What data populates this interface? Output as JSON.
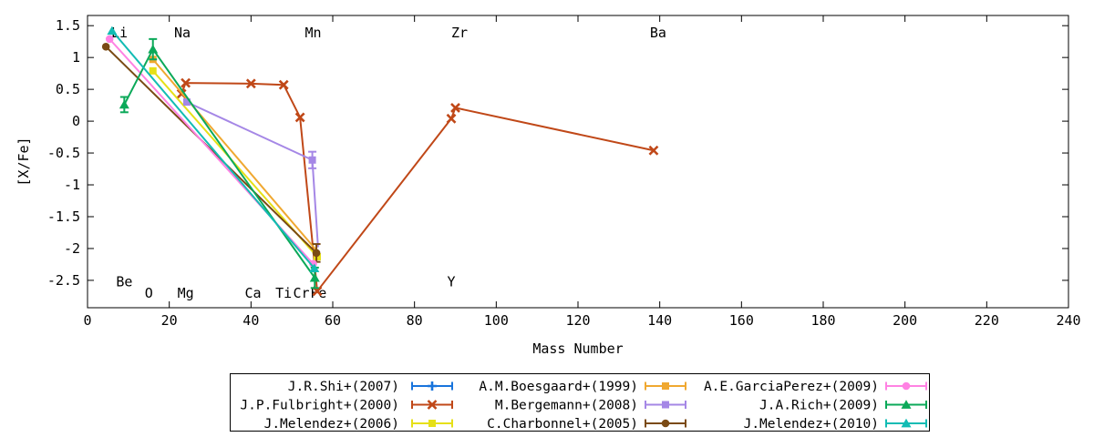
{
  "chart_data": {
    "type": "line",
    "title": "",
    "xlabel": "Mass Number",
    "ylabel": "[X/Fe]",
    "x_range": [
      0,
      240
    ],
    "y_range": [
      -2.93,
      1.66
    ],
    "grid": false,
    "legend_position": "below-center",
    "x_ticks": [
      {
        "v": 0,
        "label": "0"
      },
      {
        "v": 20,
        "label": "20"
      },
      {
        "v": 40,
        "label": "40"
      },
      {
        "v": 60,
        "label": "60"
      },
      {
        "v": 80,
        "label": "80"
      },
      {
        "v": 100,
        "label": "100"
      },
      {
        "v": 120,
        "label": "120"
      },
      {
        "v": 140,
        "label": "140"
      },
      {
        "v": 160,
        "label": "160"
      },
      {
        "v": 180,
        "label": "180"
      },
      {
        "v": 200,
        "label": "200"
      },
      {
        "v": 220,
        "label": "220"
      },
      {
        "v": 240,
        "label": "240"
      }
    ],
    "y_ticks": [
      {
        "v": 1.5,
        "label": "1.5"
      },
      {
        "v": 1,
        "label": "1"
      },
      {
        "v": 0.5,
        "label": "0.5"
      },
      {
        "v": 0,
        "label": "0"
      },
      {
        "v": -0.5,
        "label": "-0.5"
      },
      {
        "v": -1,
        "label": "-1"
      },
      {
        "v": -1.5,
        "label": "-1.5"
      },
      {
        "v": -2,
        "label": "-2"
      },
      {
        "v": -2.5,
        "label": "-2.5"
      }
    ],
    "element_labels": [
      {
        "text": "Li",
        "x": 7.8,
        "y": 1.39
      },
      {
        "text": "Na",
        "x": 23.2,
        "y": 1.39
      },
      {
        "text": "Mn",
        "x": 55.2,
        "y": 1.39
      },
      {
        "text": "Zr",
        "x": 91.0,
        "y": 1.39
      },
      {
        "text": "Ba",
        "x": 139.6,
        "y": 1.39
      },
      {
        "text": "Be",
        "x": 9.0,
        "y": -2.52
      },
      {
        "text": "O",
        "x": 15.0,
        "y": -2.7
      },
      {
        "text": "Mg",
        "x": 24.0,
        "y": -2.7
      },
      {
        "text": "Ca",
        "x": 40.5,
        "y": -2.7
      },
      {
        "text": "Ti",
        "x": 48.0,
        "y": -2.7
      },
      {
        "text": "Cr",
        "x": 52.3,
        "y": -2.7
      },
      {
        "text": "Fe",
        "x": 56.5,
        "y": -2.7
      },
      {
        "text": "Y",
        "x": 89.0,
        "y": -2.52
      }
    ],
    "series": [
      {
        "id": "shi2007",
        "name": "J.R.Shi+(2007)",
        "color": "#1874dc",
        "marker": "plus",
        "legend_col": 0,
        "legend_row": 0,
        "points": []
      },
      {
        "id": "fulbright2000",
        "name": "J.P.Fulbright+(2000)",
        "color": "#c04818",
        "marker": "x",
        "legend_col": 0,
        "legend_row": 1,
        "points": [
          {
            "x": 23,
            "y": 0.43,
            "element": "Na"
          },
          {
            "x": 24,
            "y": 0.6,
            "element": "Mg"
          },
          {
            "x": 40,
            "y": 0.59,
            "element": "Ca"
          },
          {
            "x": 48,
            "y": 0.57,
            "element": "Ti"
          },
          {
            "x": 52,
            "y": 0.06,
            "element": "Cr"
          },
          {
            "x": 56.2,
            "y": -2.67,
            "element": "Fe"
          },
          {
            "x": 89,
            "y": 0.04,
            "element": "Y"
          },
          {
            "x": 90,
            "y": 0.21,
            "element": "Zr"
          },
          {
            "x": 138.5,
            "y": -0.46,
            "element": "Ba"
          }
        ]
      },
      {
        "id": "melendez2006",
        "name": "J.Melendez+(2006)",
        "color": "#e6e017",
        "marker": "square",
        "legend_col": 0,
        "legend_row": 2,
        "points": [
          {
            "x": 16,
            "y": 0.79,
            "element": "O"
          },
          {
            "x": 56.2,
            "y": -2.13,
            "element": "Fe"
          }
        ]
      },
      {
        "id": "boesgaard1999",
        "name": "A.M.Boesgaard+(1999)",
        "color": "#f0a830",
        "marker": "square",
        "legend_col": 1,
        "legend_row": 0,
        "points": [
          {
            "x": 16,
            "y": 0.97,
            "element": "O"
          },
          {
            "x": 55.9,
            "y": -2.02,
            "element": "Fe",
            "marker_hidden": true
          }
        ]
      },
      {
        "id": "bergemann2008",
        "name": "M.Bergemann+(2008)",
        "color": "#a587e6",
        "marker": "square",
        "legend_col": 1,
        "legend_row": 1,
        "points": [
          {
            "x": 24.3,
            "y": 0.3,
            "element": "Mg"
          },
          {
            "x": 55,
            "y": -0.61,
            "ey": 0.13,
            "element": "Mn"
          },
          {
            "x": 56.4,
            "y": -1.98,
            "element": "Fe",
            "marker_hidden": true
          }
        ]
      },
      {
        "id": "charbonnel2005",
        "name": "C.Charbonnel+(2005)",
        "color": "#7a4a14",
        "marker": "circle",
        "legend_col": 1,
        "legend_row": 2,
        "points": [
          {
            "x": 4.5,
            "y": 1.17,
            "element": "Li"
          },
          {
            "x": 56,
            "y": -2.07,
            "ey": 0.14,
            "element": "Fe"
          }
        ]
      },
      {
        "id": "garciaperez2009",
        "name": "A.E.GarciaPerez+(2009)",
        "color": "#ff82e3",
        "marker": "circle",
        "legend_col": 2,
        "legend_row": 0,
        "points": [
          {
            "x": 5.4,
            "y": 1.29,
            "element": "Li"
          },
          {
            "x": 55.2,
            "y": -2.24,
            "element": "Fe"
          }
        ]
      },
      {
        "id": "rich2009",
        "name": "J.A.Rich+(2009)",
        "color": "#0ba959",
        "marker": "triangle",
        "legend_col": 2,
        "legend_row": 1,
        "points": [
          {
            "x": 9,
            "y": 0.26,
            "ey": 0.12,
            "element": "Be"
          },
          {
            "x": 16,
            "y": 1.13,
            "ey": 0.16,
            "element": "O"
          },
          {
            "x": 55.6,
            "y": -2.46,
            "ey": 0.16,
            "element": "Fe"
          }
        ]
      },
      {
        "id": "melendez2010",
        "name": "J.Melendez+(2010)",
        "color": "#12bcb4",
        "marker": "triangle",
        "legend_col": 2,
        "legend_row": 2,
        "points": [
          {
            "x": 6,
            "y": 1.42,
            "element": "Li"
          },
          {
            "x": 55.5,
            "y": -2.31,
            "element": "Fe"
          }
        ]
      }
    ]
  }
}
